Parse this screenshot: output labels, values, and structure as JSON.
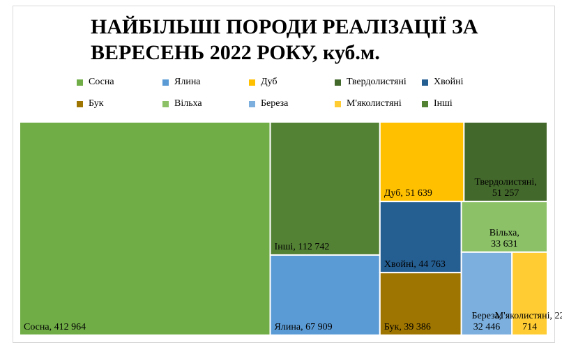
{
  "chart_data": {
    "type": "treemap",
    "title": [
      "НАЙБІЛЬШІ ПОРОДИ РЕАЛІЗАЦІЇ ЗА",
      "ВЕРЕСЕНЬ 2022 РОКУ, куб.м."
    ],
    "legend": [
      {
        "name": "Сосна",
        "color": "#70ad47"
      },
      {
        "name": "Ялина",
        "color": "#5b9bd5"
      },
      {
        "name": "Дуб",
        "color": "#ffc000"
      },
      {
        "name": "Твердолистяні",
        "color": "#43682b"
      },
      {
        "name": "Хвойні",
        "color": "#255e91"
      },
      {
        "name": "Бук",
        "color": "#9e7501"
      },
      {
        "name": "Вільха",
        "color": "#8cc168"
      },
      {
        "name": "Береза",
        "color": "#7cafdd"
      },
      {
        "name": "М'яколистяні",
        "color": "#ffcd33"
      },
      {
        "name": "Інші",
        "color": "#548235"
      }
    ],
    "items": [
      {
        "name": "Сосна",
        "value": 412964,
        "label_lines": [
          "Сосна, 412 964"
        ],
        "color": "#70ad47"
      },
      {
        "name": "Інші",
        "value": 112742,
        "label_lines": [
          "Інші, 112 742"
        ],
        "color": "#548235"
      },
      {
        "name": "Ялина",
        "value": 67909,
        "label_lines": [
          "Ялина, 67 909"
        ],
        "color": "#5b9bd5"
      },
      {
        "name": "Дуб",
        "value": 51639,
        "label_lines": [
          "Дуб, 51 639"
        ],
        "color": "#ffc000"
      },
      {
        "name": "Твердолистяні",
        "value": 51257,
        "label_lines": [
          "Твердолистяні,",
          "51 257"
        ],
        "color": "#43682b"
      },
      {
        "name": "Хвойні",
        "value": 44763,
        "label_lines": [
          "Хвойні, 44 763"
        ],
        "color": "#255e91"
      },
      {
        "name": "Бук",
        "value": 39386,
        "label_lines": [
          "Бук, 39 386"
        ],
        "color": "#9e7501"
      },
      {
        "name": "Вільха",
        "value": 33631,
        "label_lines": [
          "Вільха,",
          "33 631"
        ],
        "color": "#8cc168"
      },
      {
        "name": "Береза",
        "value": 32446,
        "label_lines": [
          "Береза,",
          "32 446"
        ],
        "color": "#7cafdd"
      },
      {
        "name": "М'яколистяні",
        "value": 22714,
        "label_lines": [
          "М'яколистяні, 22",
          "714"
        ],
        "color": "#ffcd33"
      }
    ]
  }
}
